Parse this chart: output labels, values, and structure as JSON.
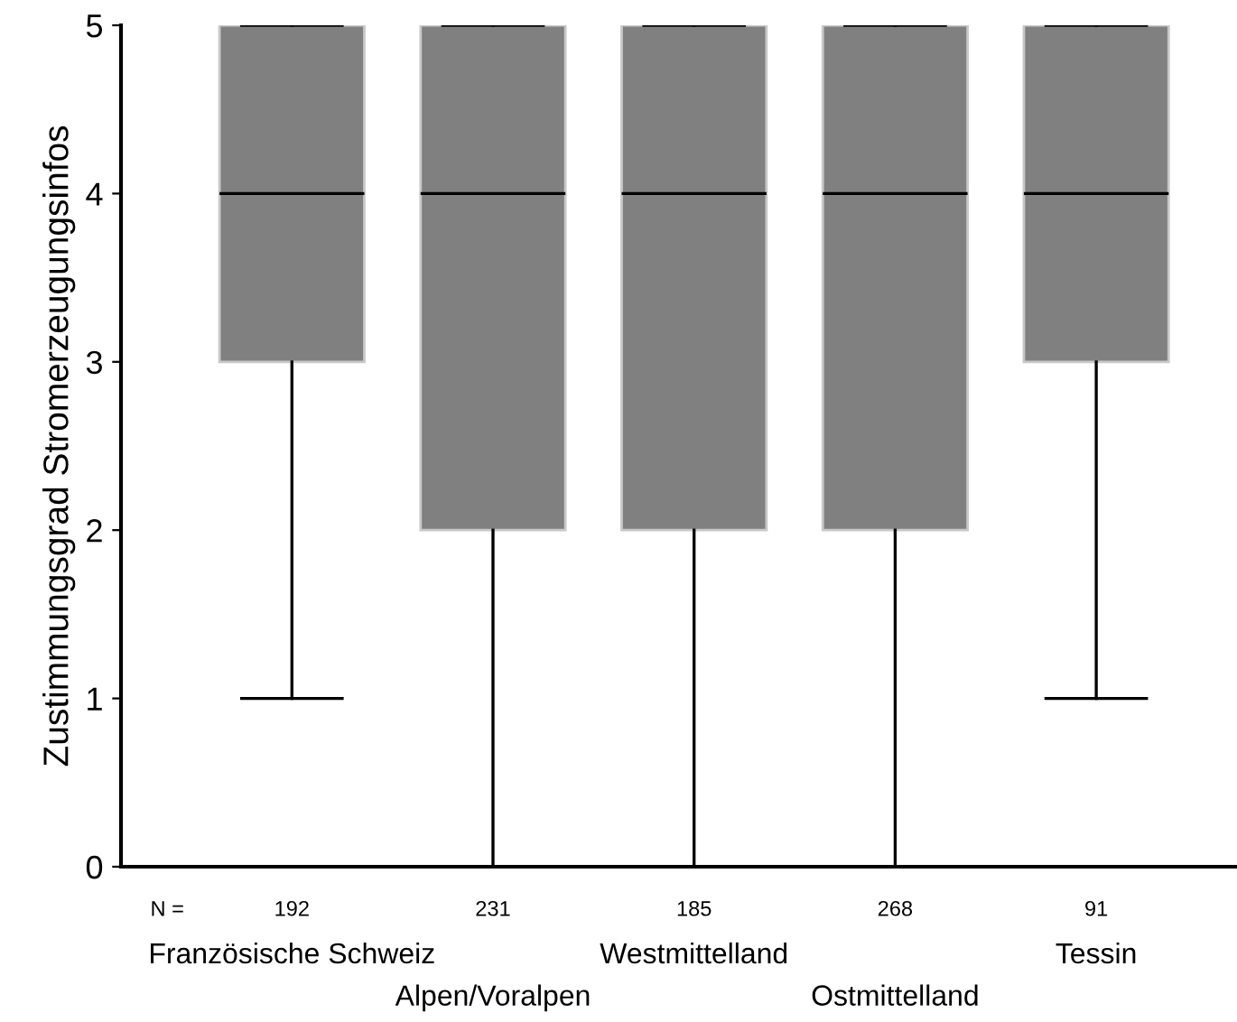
{
  "chart_data": {
    "type": "box",
    "ylabel": "Zustimmungsgrad Stromerzeugungsinfos",
    "categories": [
      "Französische Schweiz",
      "Alpen/Voralpen",
      "Westmittelland",
      "Ostmittelland",
      "Tessin"
    ],
    "boxes": [
      {
        "low": 1,
        "q1": 3,
        "median": 4,
        "q3": 5,
        "high": 5
      },
      {
        "low": 0,
        "q1": 2,
        "median": 4,
        "q3": 5,
        "high": 5
      },
      {
        "low": 0,
        "q1": 2,
        "median": 4,
        "q3": 5,
        "high": 5
      },
      {
        "low": 0,
        "q1": 2,
        "median": 4,
        "q3": 5,
        "high": 5
      },
      {
        "low": 1,
        "q1": 3,
        "median": 4,
        "q3": 5,
        "high": 5
      }
    ],
    "color": "#808080",
    "ylim": [
      0,
      5
    ],
    "yticks": [
      0,
      1,
      2,
      3,
      4,
      5
    ],
    "annotations": [
      "N =",
      "192",
      "231",
      "185",
      "268",
      "91"
    ],
    "grid": false,
    "legend": false
  }
}
